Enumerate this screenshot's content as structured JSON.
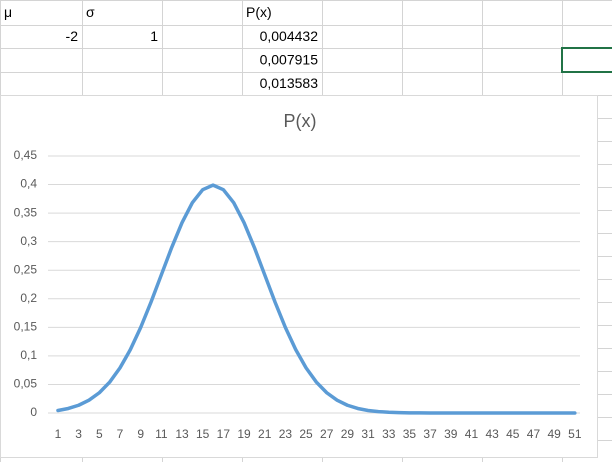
{
  "sheet": {
    "cells": {
      "A1": "μ",
      "B1": "σ",
      "D1": "P(x)",
      "A2": "-2",
      "B2": "1",
      "D2": "0,004432",
      "D3": "0,007915",
      "D4": "0,013583"
    }
  },
  "chart_data": {
    "type": "line",
    "title": "P(x)",
    "categories": [
      1,
      null,
      3,
      null,
      5,
      null,
      7,
      null,
      9,
      null,
      11,
      null,
      13,
      null,
      15,
      null,
      17,
      null,
      19,
      null,
      21,
      null,
      23,
      null,
      25,
      null,
      27,
      null,
      29,
      null,
      31,
      null,
      33,
      null,
      35,
      null,
      37,
      null,
      39,
      null,
      41,
      null,
      43,
      null,
      45,
      null,
      47,
      null,
      49,
      null,
      51
    ],
    "series": [
      {
        "name": "P(x)",
        "color": "#5b9bd5",
        "values": [
          0.004432,
          0.007915,
          0.013583,
          0.022395,
          0.035475,
          0.053991,
          0.07895,
          0.110921,
          0.149727,
          0.194186,
          0.241971,
          0.289692,
          0.333225,
          0.36827,
          0.391043,
          0.398942,
          0.391043,
          0.36827,
          0.333225,
          0.289692,
          0.241971,
          0.194186,
          0.149727,
          0.110921,
          0.07895,
          0.053991,
          0.035475,
          0.022395,
          0.013583,
          0.007915,
          0.004432,
          0.002384,
          0.001232,
          0.000612,
          0.000292,
          0.000134,
          5.89e-05,
          2.49e-05,
          1.01e-05,
          3.96e-06,
          1.49e-06,
          5.4e-07,
          1.9e-07,
          6.1e-08,
          1.9e-08,
          6.1e-09,
          1.8e-09,
          5.1e-10,
          1.4e-10,
          3.7e-11,
          9.1e-12
        ]
      }
    ],
    "ylim": [
      0,
      0.45
    ],
    "yticks": [
      0,
      {
        "value": 0.05,
        "label": "0,05"
      },
      {
        "value": 0.1,
        "label": "0,1"
      },
      {
        "value": 0.15,
        "label": "0,15"
      },
      {
        "value": 0.2,
        "label": "0,2"
      },
      {
        "value": 0.25,
        "label": "0,25"
      },
      {
        "value": 0.3,
        "label": "0,3"
      },
      {
        "value": 0.35,
        "label": "0,35"
      },
      {
        "value": 0.4,
        "label": "0,4"
      },
      {
        "value": 0.45,
        "label": "0,45"
      }
    ],
    "grid": true
  }
}
